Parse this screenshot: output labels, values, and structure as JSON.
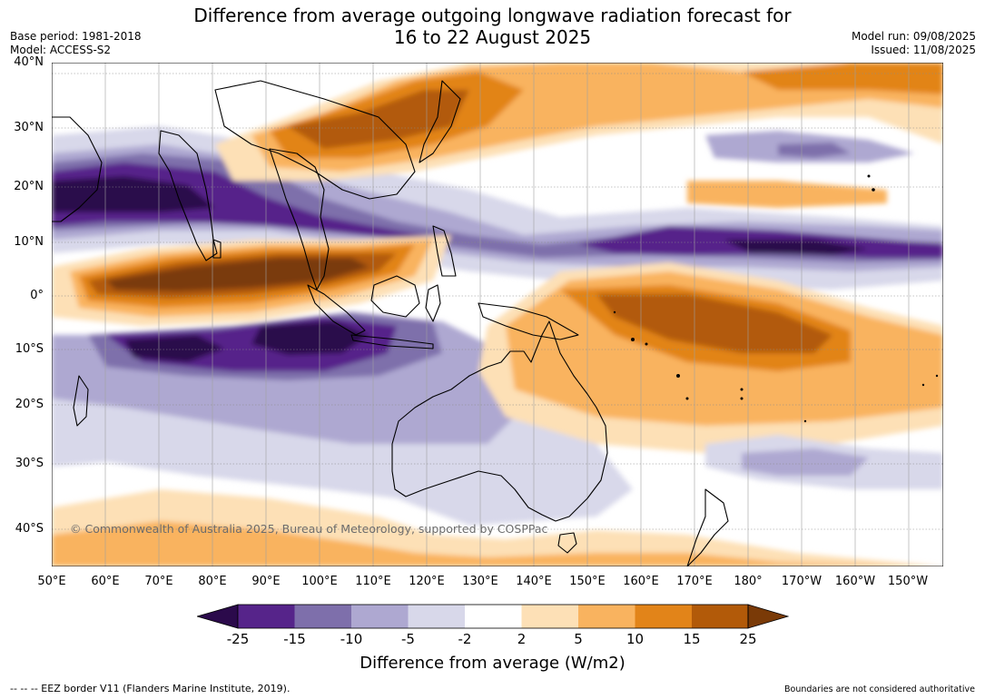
{
  "header": {
    "title_line1": "Difference from average outgoing longwave radiation forecast for",
    "title_line2": "16 to 22 August 2025",
    "base_period": "Base period: 1981-2018",
    "model": "Model: ACCESS-S2",
    "model_run": "Model run: 09/08/2025",
    "issued": "Issued: 11/08/2025"
  },
  "axes": {
    "lat_labels": [
      "40°N",
      "30°N",
      "20°N",
      "10°N",
      "0°",
      "10°S",
      "20°S",
      "30°S",
      "40°S"
    ],
    "lon_labels": [
      "50°E",
      "60°E",
      "70°E",
      "80°E",
      "90°E",
      "100°E",
      "110°E",
      "120°E",
      "130°E",
      "140°E",
      "150°E",
      "160°E",
      "170°E",
      "180°",
      "170°W",
      "160°W",
      "150°W"
    ]
  },
  "colorbar": {
    "ticks": [
      "-25",
      "-15",
      "-10",
      "-5",
      "-2",
      "2",
      "5",
      "10",
      "15",
      "25"
    ],
    "label": "Difference from average (W/m2)",
    "colors": {
      "lt-25": "#2b0a4b",
      "-25_-15": "#56248a",
      "-15_-10": "#7e6fab",
      "-10_-5": "#aea8d1",
      "-5_-2": "#d8d8ea",
      "-2_2": "#ffffff",
      "2_5": "#fde0b6",
      "5_10": "#f9b35f",
      "10_15": "#e28419",
      "15_25": "#b25a09",
      "gt25": "#7a3a07"
    }
  },
  "map": {
    "copyright": "© Commonwealth of Australia 2025, Bureau of Meteorology, supported by COSPPac"
  },
  "footer": {
    "eez_note": "--  --  -- EEZ border V11 (Flanders Marine Institute, 2019).",
    "disclaimer": "Boundaries are not considered authoritative"
  }
}
